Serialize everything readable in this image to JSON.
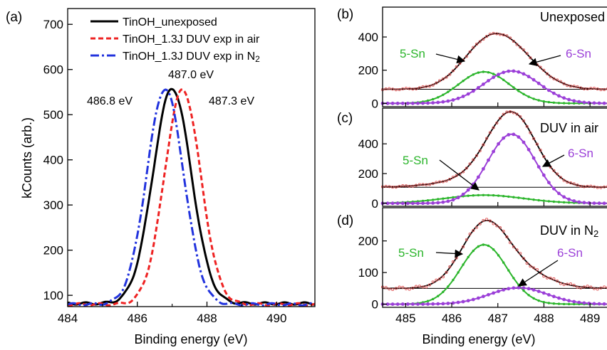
{
  "chart_data": [
    {
      "type": "line",
      "panel_label": "(a)",
      "xlabel": "Binding energy (eV)",
      "ylabel": "kCounts (arb.)",
      "xlim": [
        484,
        491.1
      ],
      "ylim": [
        75,
        735
      ],
      "xticks": [
        484,
        486,
        488,
        490
      ],
      "yticks": [
        100,
        200,
        300,
        400,
        500,
        600,
        700
      ],
      "legend_position": "top-left",
      "series": [
        {
          "name": "TinOH_unexposed",
          "color": "#000000",
          "dash": "solid",
          "center": 487.0,
          "peak": 558,
          "base": 82,
          "sigma": 0.55
        },
        {
          "name": "TinOH_1.3J DUV exp in air",
          "color": "#ee2222",
          "dash": "dashed",
          "center": 487.3,
          "peak": 555,
          "base": 80,
          "sigma": 0.52
        },
        {
          "name": "TinOH_1.3J DUV exp in N",
          "name_subscript": "2",
          "color": "#2233dd",
          "dash": "dashdot",
          "center": 486.8,
          "peak": 557,
          "base": 80,
          "sigma": 0.53
        }
      ],
      "annotations": [
        {
          "text": "487.0 eV",
          "x": 487.0,
          "y": 590
        },
        {
          "text": "486.8 eV",
          "x": 485.5,
          "y": 520
        },
        {
          "text": "487.3 eV",
          "x": 488.7,
          "y": 520
        }
      ]
    },
    {
      "type": "line",
      "panel_label": "(b)",
      "title": "Unexposed",
      "xlim": [
        484.5,
        489.6
      ],
      "ylim": [
        -20,
        580
      ],
      "yticks": [
        0,
        200,
        400
      ],
      "baseline": 85,
      "components": [
        {
          "label": "5-Sn",
          "center": 486.7,
          "amplitude": 190,
          "sigma": 0.55,
          "color": "#2bb52b"
        },
        {
          "label": "6-Sn",
          "center": 487.3,
          "amplitude": 195,
          "sigma": 0.6,
          "color": "#9b3fd8"
        }
      ],
      "envelope_color": "#000000",
      "data_color": "#e05555"
    },
    {
      "type": "line",
      "panel_label": "(c)",
      "title": "DUV in air",
      "xlim": [
        484.5,
        489.6
      ],
      "ylim": [
        -20,
        640
      ],
      "yticks": [
        0,
        200,
        400
      ],
      "baseline": 108,
      "components": [
        {
          "label": "5-Sn",
          "center": 486.7,
          "amplitude": 55,
          "sigma": 0.85,
          "color": "#2bb52b"
        },
        {
          "label": "6-Sn",
          "center": 487.3,
          "amplitude": 465,
          "sigma": 0.52,
          "color": "#9b3fd8"
        }
      ],
      "envelope_color": "#000000",
      "data_color": "#e05555"
    },
    {
      "type": "line",
      "panel_label": "(d)",
      "title": "DUV in N",
      "title_subscript": "2",
      "xlabel": "Binding energy (eV)",
      "xlim": [
        484.5,
        489.6
      ],
      "ylim": [
        -10,
        305
      ],
      "xticks": [
        485,
        486,
        487,
        488,
        489
      ],
      "yticks": [
        0,
        100,
        200
      ],
      "baseline": 50,
      "components": [
        {
          "label": "5-Sn",
          "center": 486.7,
          "amplitude": 188,
          "sigma": 0.5,
          "color": "#2bb52b"
        },
        {
          "label": "6-Sn",
          "center": 487.45,
          "amplitude": 52,
          "sigma": 0.62,
          "color": "#9b3fd8"
        }
      ],
      "envelope_color": "#000000",
      "data_color": "#e05555"
    }
  ]
}
